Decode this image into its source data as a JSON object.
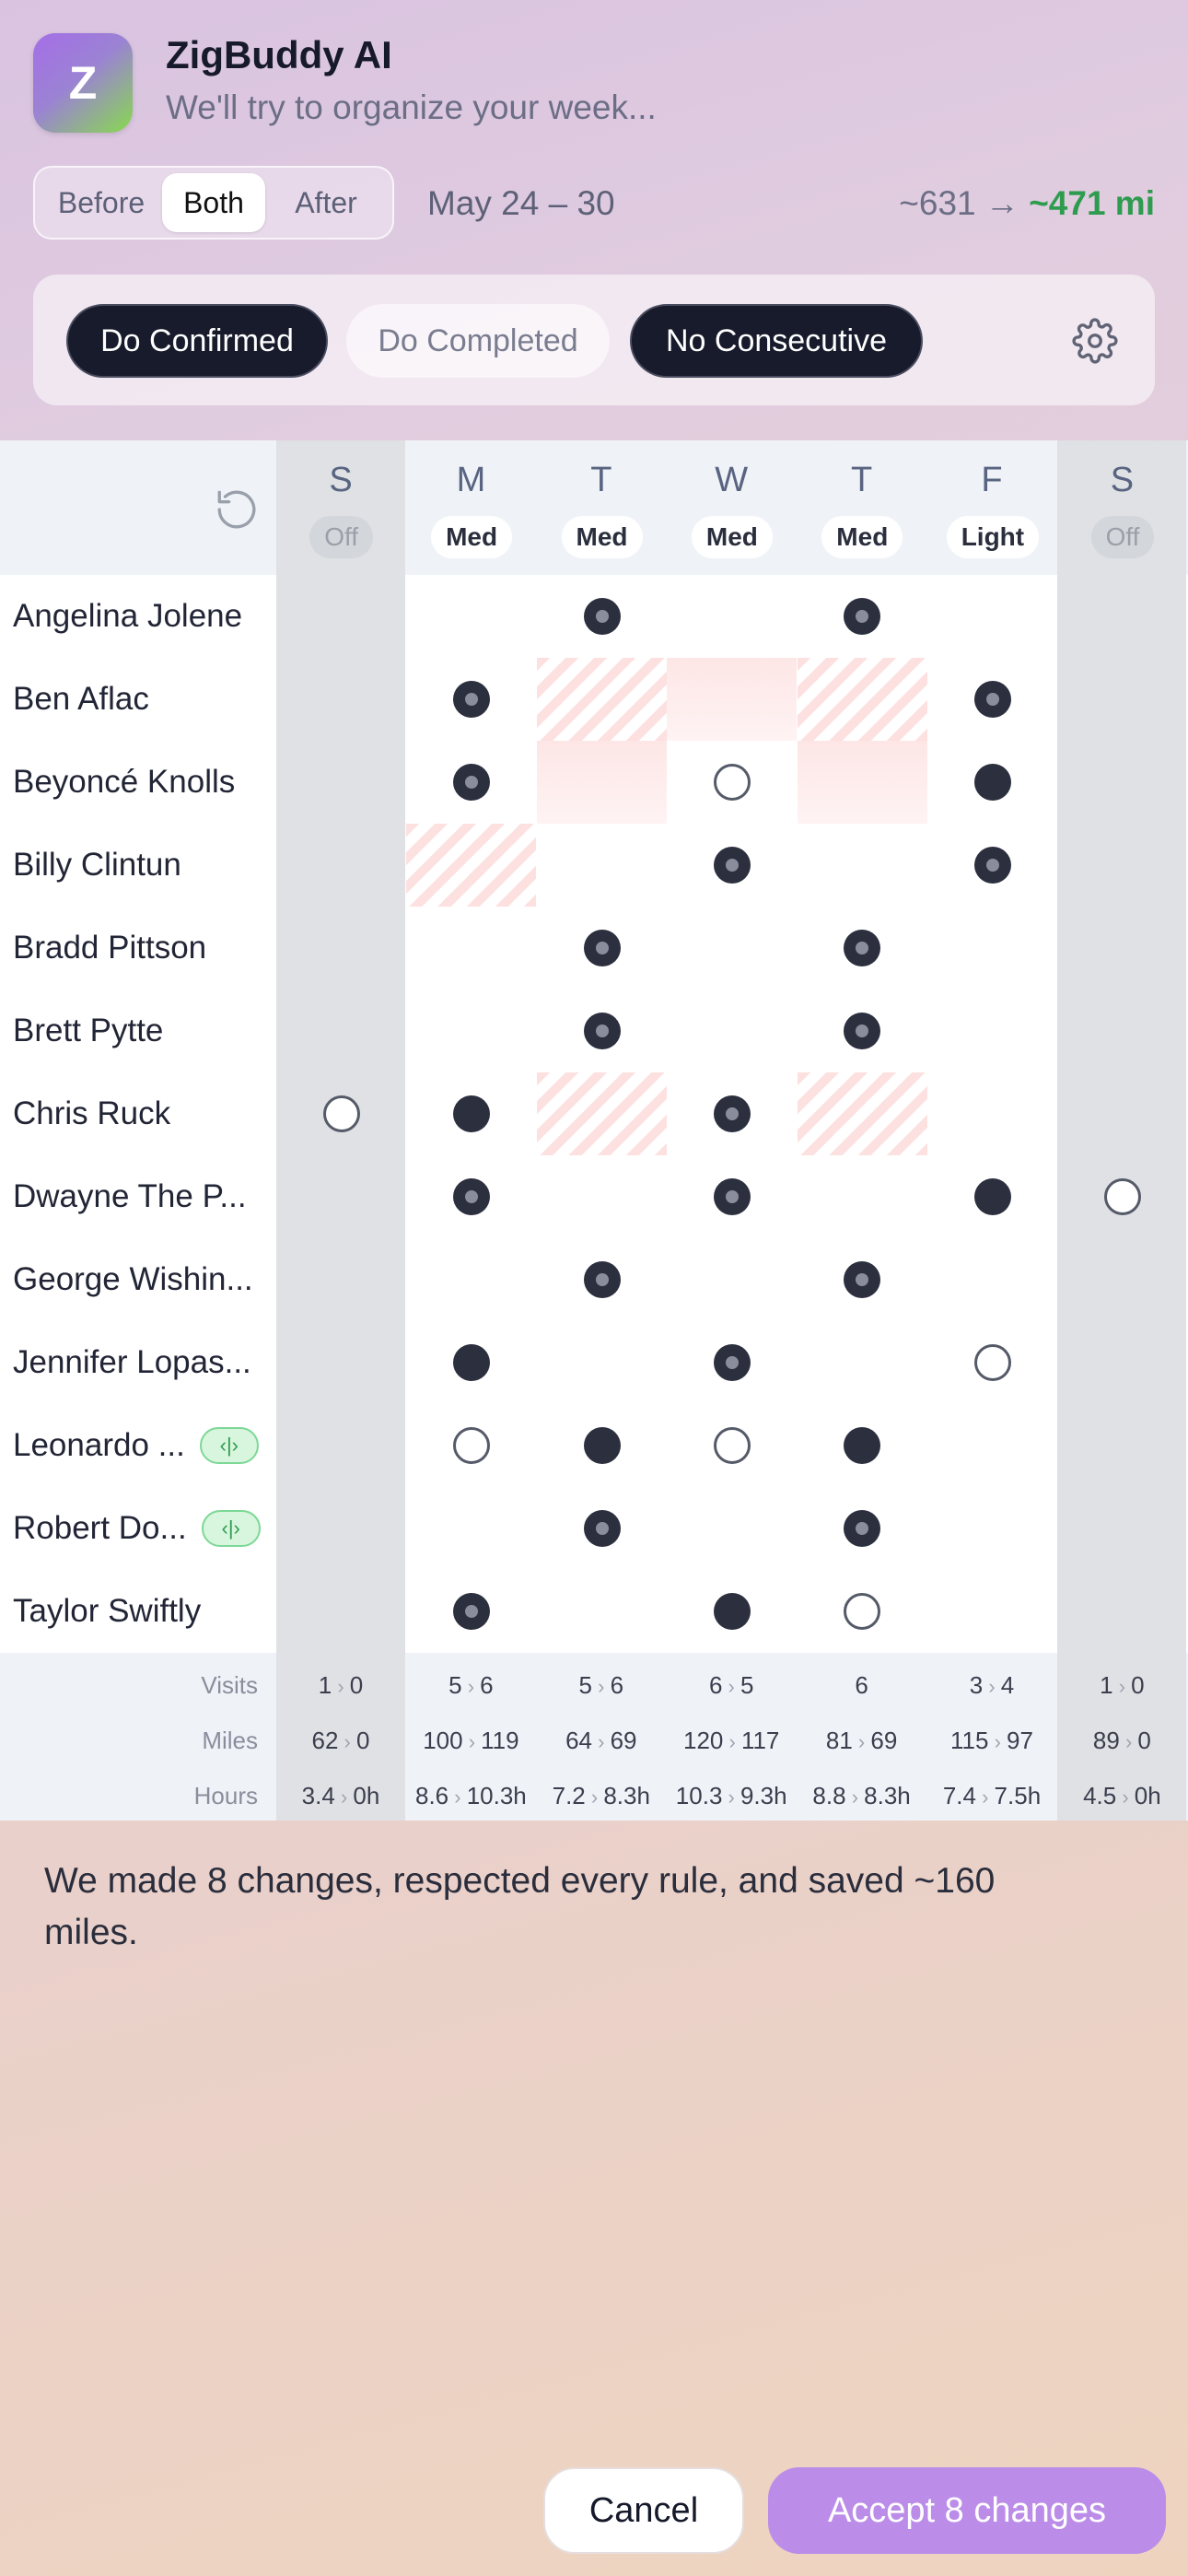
{
  "app": {
    "icon_letter": "Z",
    "title": "ZigBuddy AI",
    "subtitle": "We'll try to organize your week..."
  },
  "view_toggle": {
    "options": [
      "Before",
      "Both",
      "After"
    ],
    "selected": "Both"
  },
  "date_range": "May 24 – 30",
  "mileage": {
    "before": "~631 →",
    "after": "~471 mi"
  },
  "rules": [
    {
      "label": "Do Confirmed",
      "active": true
    },
    {
      "label": "Do Completed",
      "active": false
    },
    {
      "label": "No Consecutive",
      "active": true
    }
  ],
  "icons": {
    "settings": "gear-icon",
    "reset": "refresh-icon",
    "swap": "swap-icon"
  },
  "days": [
    {
      "letter": "S",
      "level": "Off",
      "weekend": true
    },
    {
      "letter": "M",
      "level": "Med",
      "weekend": false
    },
    {
      "letter": "T",
      "level": "Med",
      "weekend": false
    },
    {
      "letter": "W",
      "level": "Med",
      "weekend": false
    },
    {
      "letter": "T",
      "level": "Med",
      "weekend": false
    },
    {
      "letter": "F",
      "level": "Light",
      "weekend": false
    },
    {
      "letter": "S",
      "level": "Off",
      "weekend": true
    }
  ],
  "legend": {
    "ring": "moved-visit",
    "full": "kept-visit",
    "hollow": "removed-visit",
    "hatch": "conflict",
    "pink": "flagged"
  },
  "clients": [
    {
      "name": "Angelina Jolene",
      "swap": false,
      "cells": [
        "",
        "",
        "ring",
        "",
        "ring",
        "",
        ""
      ]
    },
    {
      "name": "Ben Aflac",
      "swap": false,
      "cells": [
        "",
        "ring",
        "hatch",
        "pink",
        "hatch",
        "ring",
        ""
      ]
    },
    {
      "name": "Beyoncé Knolls",
      "swap": false,
      "cells": [
        "",
        "ring",
        "pink",
        "hollow",
        "pink",
        "full",
        ""
      ]
    },
    {
      "name": "Billy Clintun",
      "swap": false,
      "cells": [
        "",
        "hatch",
        "",
        "ring",
        "",
        "ring",
        ""
      ]
    },
    {
      "name": "Bradd Pittson",
      "swap": false,
      "cells": [
        "",
        "",
        "ring",
        "",
        "ring",
        "",
        ""
      ]
    },
    {
      "name": "Brett Pytte",
      "swap": false,
      "cells": [
        "",
        "",
        "ring",
        "",
        "ring",
        "",
        ""
      ]
    },
    {
      "name": "Chris Ruck",
      "swap": false,
      "cells": [
        "hollow",
        "full",
        "hatch",
        "ring",
        "hatch",
        "",
        ""
      ]
    },
    {
      "name": "Dwayne The P...",
      "swap": false,
      "cells": [
        "",
        "ring",
        "",
        "ring",
        "",
        "full",
        "hollow"
      ]
    },
    {
      "name": "George Wishin...",
      "swap": false,
      "cells": [
        "",
        "",
        "ring",
        "",
        "ring",
        "",
        ""
      ]
    },
    {
      "name": "Jennifer Lopas...",
      "swap": false,
      "cells": [
        "",
        "full",
        "",
        "ring",
        "",
        "hollow",
        ""
      ]
    },
    {
      "name": "Leonardo ...",
      "swap": true,
      "cells": [
        "",
        "hollow",
        "full",
        "hollow",
        "full",
        "",
        ""
      ]
    },
    {
      "name": "Robert Do...",
      "swap": true,
      "cells": [
        "",
        "",
        "ring",
        "",
        "ring",
        "",
        ""
      ]
    },
    {
      "name": "Taylor Swiftly",
      "swap": false,
      "cells": [
        "",
        "ring",
        "",
        "full",
        "hollow",
        "",
        ""
      ]
    }
  ],
  "footer": {
    "labels": {
      "visits": "Visits",
      "miles": "Miles",
      "hours": "Hours"
    },
    "visits": [
      [
        "1",
        "0"
      ],
      [
        "5",
        "6"
      ],
      [
        "5",
        "6"
      ],
      [
        "6",
        "5"
      ],
      [
        "6",
        ""
      ],
      [
        "3",
        "4"
      ],
      [
        "1",
        "0"
      ]
    ],
    "miles": [
      [
        "62",
        "0"
      ],
      [
        "100",
        "119"
      ],
      [
        "64",
        "69"
      ],
      [
        "120",
        "117"
      ],
      [
        "81",
        "69"
      ],
      [
        "115",
        "97"
      ],
      [
        "89",
        "0"
      ]
    ],
    "hours": [
      [
        "3.4",
        "0h"
      ],
      [
        "8.6",
        "10.3h"
      ],
      [
        "7.2",
        "8.3h"
      ],
      [
        "10.3",
        "9.3h"
      ],
      [
        "8.8",
        "8.3h"
      ],
      [
        "7.4",
        "7.5h"
      ],
      [
        "4.5",
        "0h"
      ]
    ]
  },
  "summary": "We made 8 changes, respected every rule, and saved ~160 miles.",
  "actions": {
    "cancel": "Cancel",
    "accept": "Accept 8 changes"
  }
}
